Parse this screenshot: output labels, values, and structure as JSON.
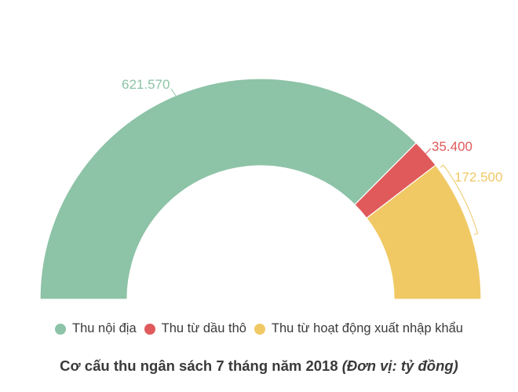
{
  "chart_data": {
    "type": "pie",
    "variant": "semicircle-donut",
    "title": "Cơ cấu thu ngân sách 7 tháng năm 2018",
    "unit": "(Đơn vị: tỷ đồng)",
    "categories": [
      "Thu nội địa",
      "Thu từ dầu thô",
      "Thu từ hoạt động xuất nhập khẩu"
    ],
    "values": [
      621570,
      35400,
      172500
    ],
    "value_labels": [
      "621.570",
      "35.400",
      "172.500"
    ],
    "colors": [
      "#8DC3A7",
      "#E05A5B",
      "#F0C965"
    ],
    "legend_position": "bottom"
  },
  "legend": {
    "items": [
      {
        "label": "Thu nội địa",
        "color": "#8DC3A7"
      },
      {
        "label": "Thu từ dầu thô",
        "color": "#E05A5B"
      },
      {
        "label": "Thu từ hoạt động xuất nhập khẩu",
        "color": "#F0C965"
      }
    ]
  },
  "caption": {
    "main": "Cơ cấu thu ngân sách 7 tháng năm 2018",
    "unit": "(Đơn vị: tỷ đồng)"
  }
}
